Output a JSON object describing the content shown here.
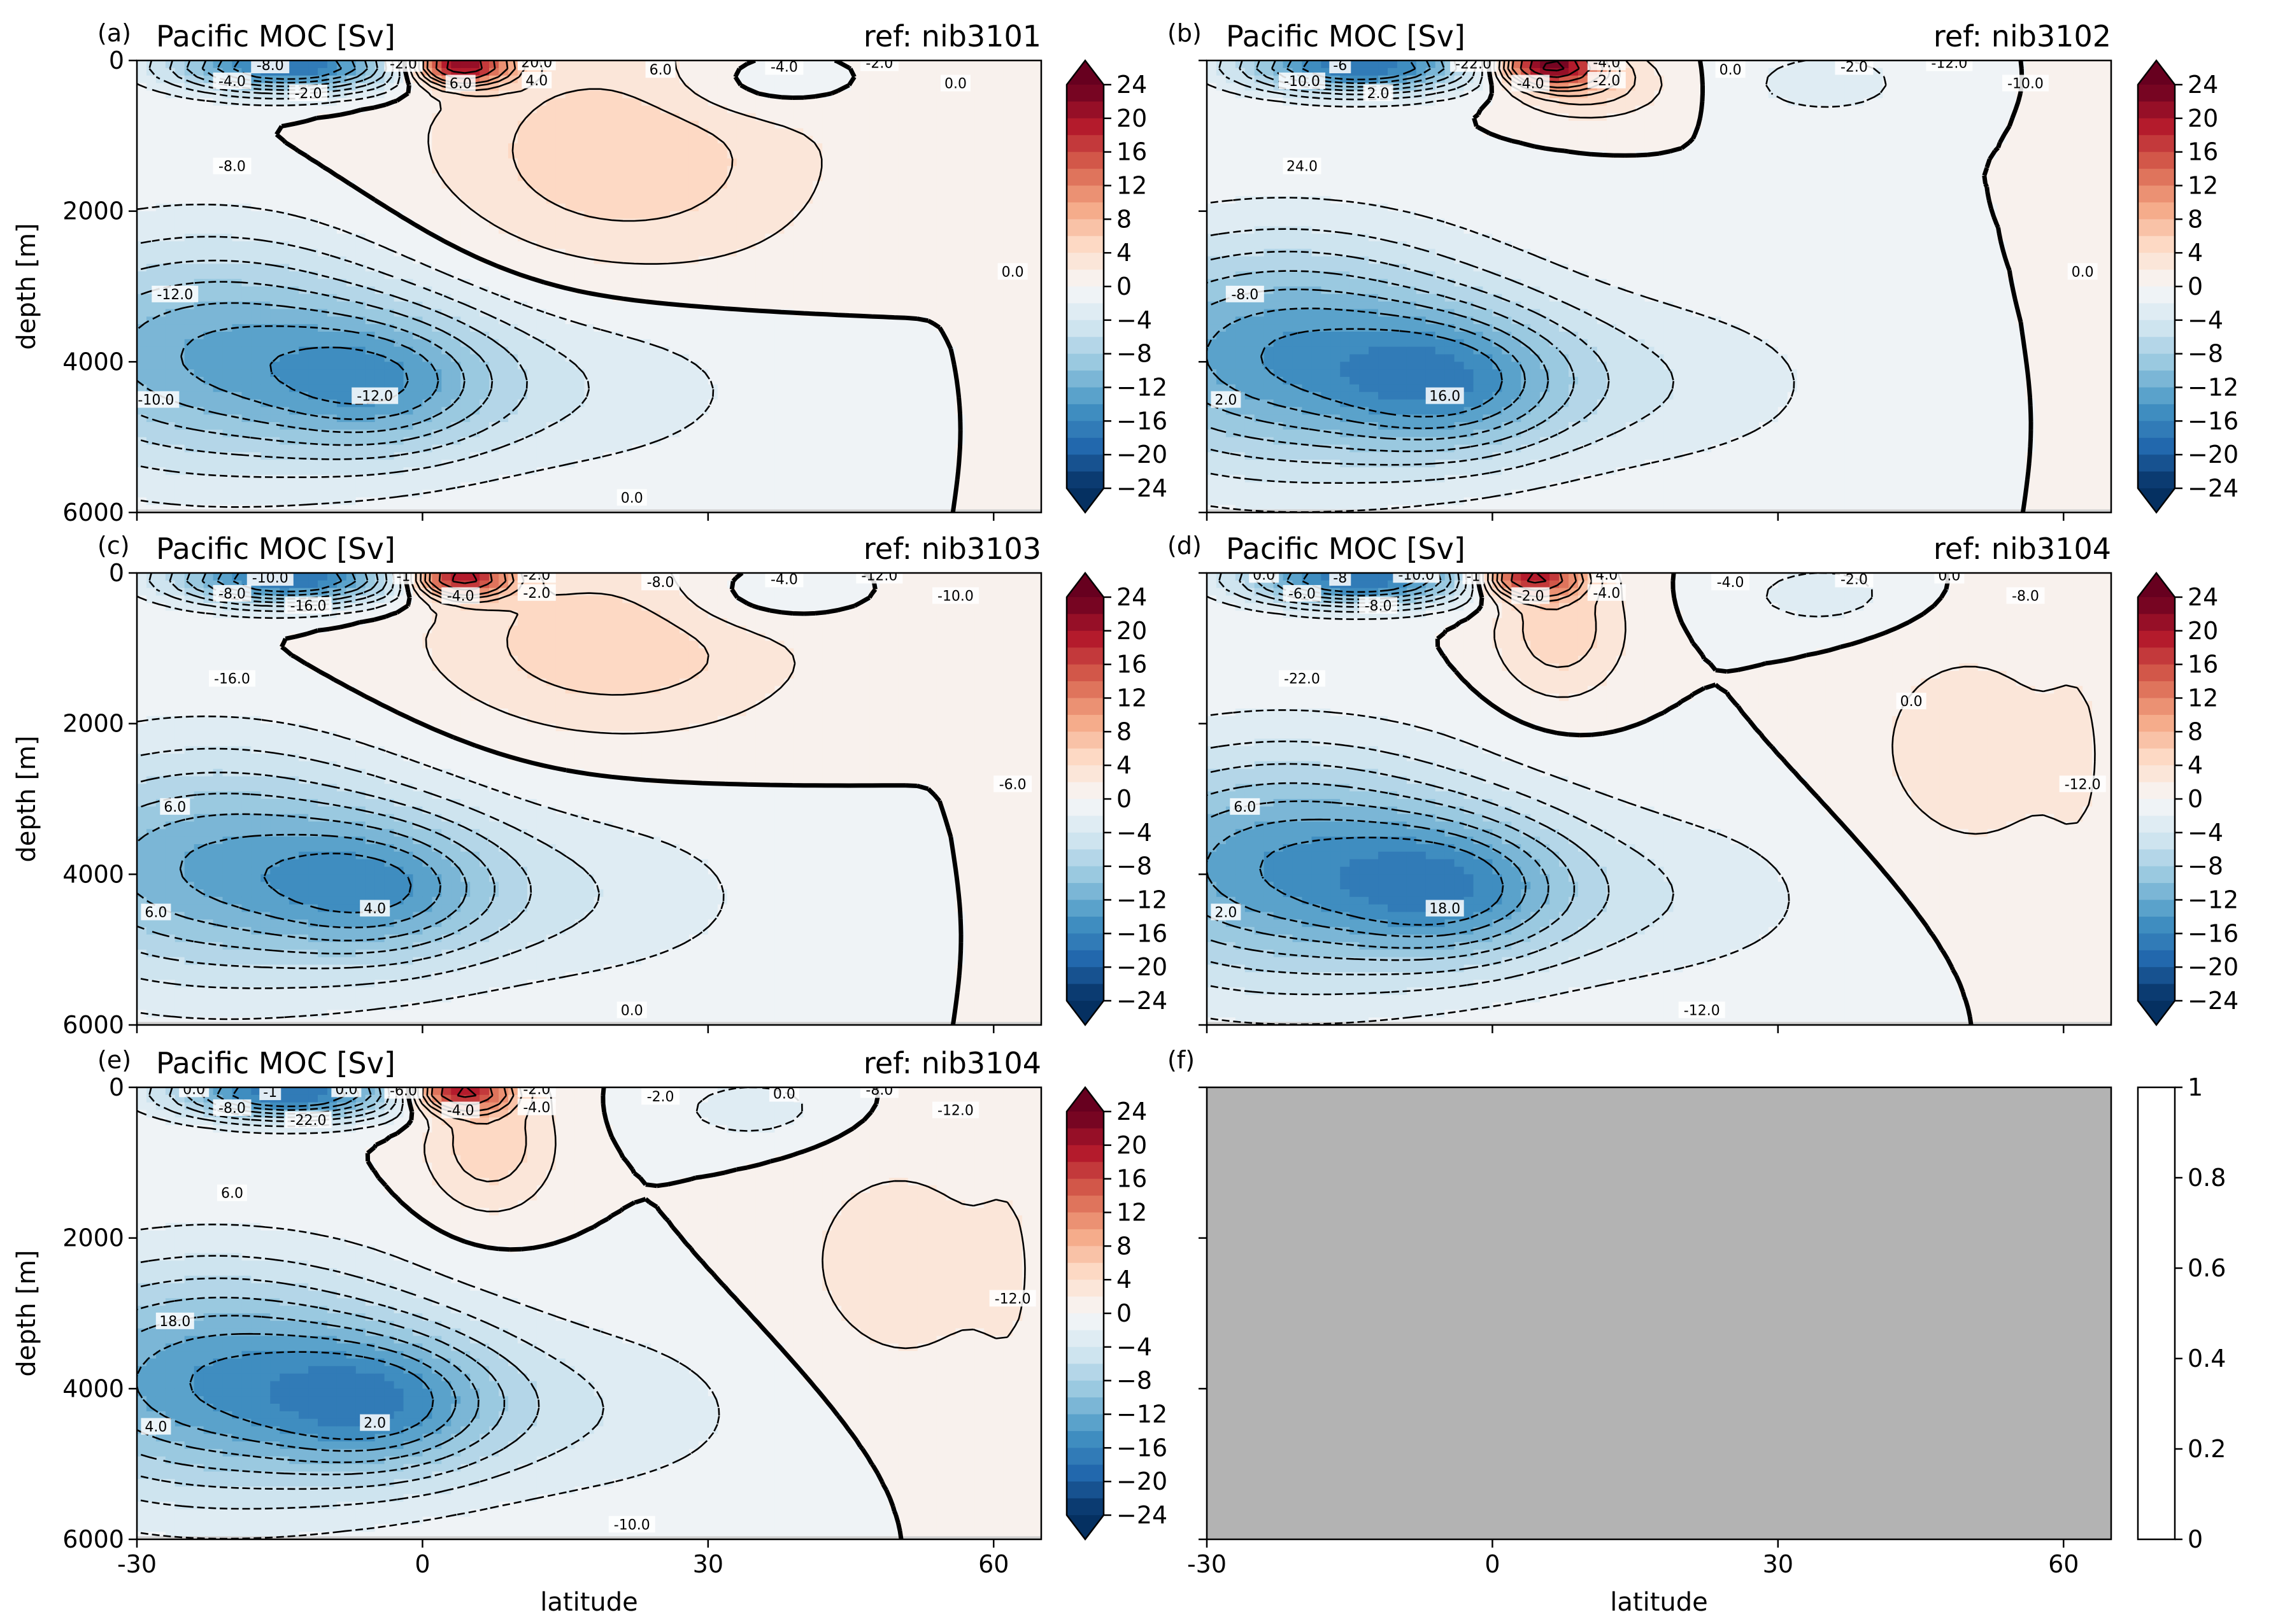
{
  "colors": {
    "colormap": "RdBu_r",
    "levels": [
      -24,
      -22,
      -20,
      -18,
      -16,
      -14,
      -12,
      -10,
      -8,
      -6,
      -4,
      -2,
      0,
      2,
      4,
      6,
      8,
      10,
      12,
      14,
      16,
      18,
      20,
      22,
      24
    ],
    "land_gray": "#b3b3b3"
  },
  "chart_data": [
    {
      "panel": "(a)",
      "type": "heatmap",
      "title": "Pacific MOC [Sv]",
      "ref": "ref: nib3101",
      "xlabel": "",
      "ylabel": "depth [m]",
      "xlim": [
        -30,
        65
      ],
      "ylim": [
        6000,
        0
      ],
      "xticks": [
        -30,
        0,
        30,
        60
      ],
      "xtick_labels_shown": false,
      "yticks": [
        0,
        2000,
        4000,
        6000
      ],
      "colorbar_ticks": [
        24,
        20,
        16,
        12,
        8,
        4,
        0,
        -4,
        -8,
        -12,
        -16,
        -20,
        -24
      ],
      "contour_labels": [
        "-8.0",
        "-2.0",
        "-4.0",
        "-2.0",
        "-8.0",
        "-12.0",
        "-12.0",
        "-10.0",
        "20.0",
        "6.0",
        "4.0",
        "6.0",
        "-4.0",
        "-2.0",
        "0.0",
        "0.0",
        "0.0"
      ],
      "features": {
        "deep_negative_cell": {
          "lat_range": [
            -30,
            30
          ],
          "depth_range": [
            2500,
            5500
          ],
          "core_lat": -4,
          "core_depth": 4300,
          "min_sv": -14
        },
        "positive_upper_cell": {
          "lat_range": [
            0,
            42
          ],
          "depth_range": [
            0,
            3100
          ],
          "max_sv": 24
        },
        "zero_contour_extends_to_depth": 3100
      }
    },
    {
      "panel": "(b)",
      "type": "heatmap",
      "title": "Pacific MOC [Sv]",
      "ref": "ref: nib3102",
      "xlabel": "",
      "ylabel": "",
      "xlim": [
        -30,
        65
      ],
      "ylim": [
        6000,
        0
      ],
      "xticks": [
        -30,
        0,
        30,
        60
      ],
      "xtick_labels_shown": false,
      "yticks": [
        0,
        2000,
        4000,
        6000
      ],
      "ytick_labels_shown": false,
      "colorbar_ticks": [
        24,
        20,
        16,
        12,
        8,
        4,
        0,
        -4,
        -8,
        -12,
        -16,
        -20,
        -24
      ],
      "contour_labels": [
        "-6",
        "-22.0",
        "-10.0",
        "2.0",
        "24.0",
        "-8.0",
        "16.0",
        "2.0",
        "-4.0",
        "-4.0",
        "-2.0",
        "0.0",
        "-2.0",
        "-12.0",
        "-10.0",
        "0.0"
      ],
      "features": {
        "deep_negative_cell": {
          "lat_range": [
            -30,
            30
          ],
          "depth_range": [
            2500,
            5500
          ],
          "core_lat": -4,
          "core_depth": 4300,
          "min_sv": -16
        },
        "positive_upper_cell": {
          "lat_range": [
            2,
            18
          ],
          "depth_range": [
            0,
            800
          ],
          "max_sv": 24
        }
      }
    },
    {
      "panel": "(c)",
      "type": "heatmap",
      "title": "Pacific MOC [Sv]",
      "ref": "ref: nib3103",
      "xlabel": "",
      "ylabel": "depth [m]",
      "xlim": [
        -30,
        65
      ],
      "ylim": [
        6000,
        0
      ],
      "xticks": [
        -30,
        0,
        30,
        60
      ],
      "xtick_labels_shown": false,
      "yticks": [
        0,
        2000,
        4000,
        6000
      ],
      "colorbar_ticks": [
        24,
        20,
        16,
        12,
        8,
        4,
        0,
        -4,
        -8,
        -12,
        -16,
        -20,
        -24
      ],
      "contour_labels": [
        "-10.0",
        "-1",
        "-8.0",
        "-16.0",
        "-16.0",
        "6.0",
        "4.0",
        "6.0",
        "-2.0",
        "-4.0",
        "-2.0",
        "-8.0",
        "-4.0",
        "-12.0",
        "-10.0",
        "-6.0",
        "0.0"
      ],
      "features": {
        "deep_negative_cell": {
          "lat_range": [
            -30,
            32
          ],
          "depth_range": [
            2500,
            5600
          ],
          "core_lat": -4,
          "core_depth": 4200,
          "min_sv": -14
        },
        "positive_upper_cell": {
          "lat_range": [
            0,
            40
          ],
          "depth_range": [
            0,
            2300
          ],
          "max_sv": 22
        }
      }
    },
    {
      "panel": "(d)",
      "type": "heatmap",
      "title": "Pacific MOC [Sv]",
      "ref": "ref: nib3104",
      "xlabel": "",
      "ylabel": "",
      "xlim": [
        -30,
        65
      ],
      "ylim": [
        6000,
        0
      ],
      "xticks": [
        -30,
        0,
        30,
        60
      ],
      "xtick_labels_shown": false,
      "yticks": [
        0,
        2000,
        4000,
        6000
      ],
      "ytick_labels_shown": false,
      "colorbar_ticks": [
        24,
        20,
        16,
        12,
        8,
        4,
        0,
        -4,
        -8,
        -12,
        -16,
        -20,
        -24
      ],
      "contour_labels": [
        "-8",
        "-1",
        "-6.0",
        "-8.0",
        "-22.0",
        "6.0",
        "18.0",
        "2.0",
        "4.0",
        "-2.0",
        "-4.0",
        "-4.0",
        "-2.0",
        "0.0",
        "-8.0",
        "-12.0",
        "-12.0",
        "-10.0",
        "0.0",
        "0.0"
      ],
      "features": {
        "deep_negative_cell": {
          "lat_range": [
            -30,
            30
          ],
          "depth_range": [
            2500,
            5600
          ],
          "core_lat": -4,
          "core_depth": 4200,
          "min_sv": -16
        },
        "positive_upper_cell": {
          "lat_range": [
            0,
            14
          ],
          "depth_range": [
            0,
            1800
          ],
          "max_sv": 20
        },
        "positive_deep_tongue": {
          "lat_range": [
            27,
            65
          ],
          "depth_range": [
            500,
            4600
          ]
        }
      }
    },
    {
      "panel": "(e)",
      "type": "heatmap",
      "title": "Pacific MOC [Sv]",
      "ref": "ref: nib3104",
      "xlabel": "latitude",
      "ylabel": "depth [m]",
      "xlim": [
        -30,
        65
      ],
      "ylim": [
        6000,
        0
      ],
      "xticks": [
        -30,
        0,
        30,
        60
      ],
      "yticks": [
        0,
        2000,
        4000,
        6000
      ],
      "colorbar_ticks": [
        24,
        20,
        16,
        12,
        8,
        4,
        0,
        -4,
        -8,
        -12,
        -16,
        -20,
        -24
      ],
      "contour_labels": [
        "-1",
        "-6.0",
        "-8.0",
        "-22.0",
        "6.0",
        "18.0",
        "2.0",
        "4.0",
        "-2.0",
        "-4.0",
        "-4.0",
        "-2.0",
        "0.0",
        "-8.0",
        "-12.0",
        "-12.0",
        "-10.0",
        "0.0",
        "0.0"
      ],
      "features": {
        "deep_negative_cell": {
          "lat_range": [
            -30,
            30
          ],
          "depth_range": [
            2500,
            5600
          ],
          "core_lat": -4,
          "core_depth": 4200,
          "min_sv": -16
        },
        "positive_upper_cell": {
          "lat_range": [
            0,
            14
          ],
          "depth_range": [
            0,
            1800
          ],
          "max_sv": 20
        },
        "positive_deep_tongue": {
          "lat_range": [
            27,
            65
          ],
          "depth_range": [
            500,
            4600
          ]
        }
      }
    },
    {
      "panel": "(f)",
      "type": "heatmap",
      "title": "",
      "ref": "",
      "xlabel": "latitude",
      "ylabel": "",
      "xlim": [
        -30,
        65
      ],
      "ylim": [
        6000,
        0
      ],
      "xticks": [
        -30,
        0,
        30,
        60
      ],
      "yticks": [
        0,
        2000,
        4000,
        6000
      ],
      "ytick_labels_shown": false,
      "fill": "uniform gray (no data)",
      "colorbar_ticks": [
        1.0,
        0.8,
        0.6,
        0.4,
        0.2,
        0.0
      ]
    }
  ]
}
